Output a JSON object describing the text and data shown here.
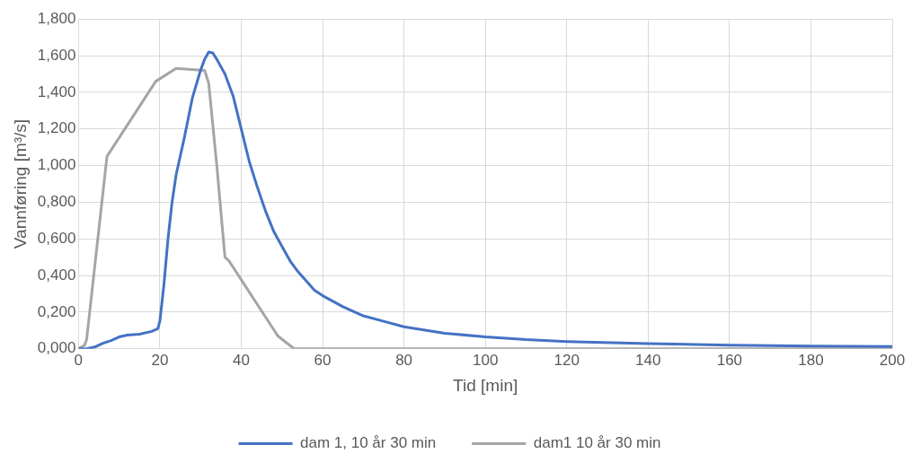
{
  "chart_data": {
    "type": "line",
    "xlabel": "Tid [min]",
    "ylabel": "Vannføring [m³/s]",
    "xlim": [
      0,
      200
    ],
    "xticks": [
      0,
      20,
      40,
      60,
      80,
      100,
      120,
      140,
      160,
      180,
      200
    ],
    "ylim": [
      0,
      1.8
    ],
    "yticks": [
      {
        "value": 0,
        "label": "0,000"
      },
      {
        "value": 0.2,
        "label": "0,200"
      },
      {
        "value": 0.4,
        "label": "0,400"
      },
      {
        "value": 0.6,
        "label": "0,600"
      },
      {
        "value": 0.8,
        "label": "0,800"
      },
      {
        "value": 1,
        "label": "1,000"
      },
      {
        "value": 1.2,
        "label": "1,200"
      },
      {
        "value": 1.4,
        "label": "1,400"
      },
      {
        "value": 1.6,
        "label": "1,600"
      },
      {
        "value": 1.8,
        "label": "1,800"
      }
    ],
    "grid": true,
    "legend": "bottom",
    "marker": "none",
    "line_style": "solid",
    "series": [
      {
        "name": "dam 1, 10 år 30 min",
        "color": "#4472c4",
        "x": [
          0,
          2,
          4,
          6,
          8,
          10,
          12,
          15,
          18,
          19.5,
          20,
          21,
          22,
          23,
          24,
          26,
          28,
          30,
          31,
          32,
          33,
          34,
          36,
          38,
          40,
          42,
          44,
          46,
          48,
          50,
          52,
          54,
          56,
          58,
          60,
          65,
          70,
          75,
          80,
          90,
          100,
          110,
          120,
          140,
          160,
          180,
          200
        ],
        "values": [
          0,
          0,
          0.01,
          0.03,
          0.045,
          0.065,
          0.075,
          0.08,
          0.095,
          0.11,
          0.15,
          0.35,
          0.6,
          0.8,
          0.95,
          1.15,
          1.37,
          1.52,
          1.58,
          1.62,
          1.615,
          1.58,
          1.5,
          1.38,
          1.2,
          1.02,
          0.88,
          0.75,
          0.64,
          0.56,
          0.48,
          0.42,
          0.37,
          0.32,
          0.29,
          0.23,
          0.18,
          0.15,
          0.12,
          0.085,
          0.065,
          0.05,
          0.04,
          0.028,
          0.02,
          0.015,
          0.012
        ]
      },
      {
        "name": "dam1 10 år 30 min",
        "color": "#a5a5a5",
        "x": [
          0,
          1.5,
          2,
          7,
          19,
          24,
          31,
          32,
          34,
          36,
          37,
          49,
          53,
          200
        ],
        "values": [
          0,
          0.02,
          0.05,
          1.05,
          1.46,
          1.53,
          1.52,
          1.45,
          1,
          0.5,
          0.48,
          0.07,
          0,
          0
        ]
      }
    ]
  }
}
